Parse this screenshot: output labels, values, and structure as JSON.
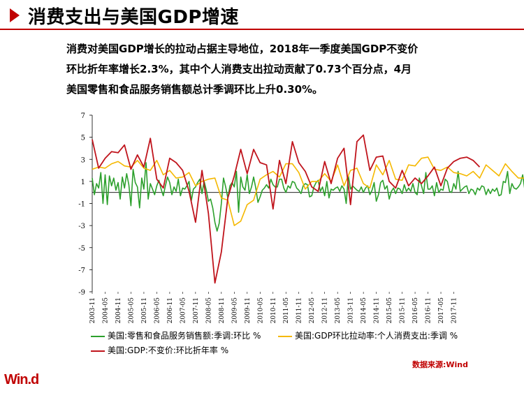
{
  "header": {
    "title": "消费支出与美国GDP增速"
  },
  "intro": {
    "lines": [
      "消费对美国GDP增长的拉动占据主导地位，2018年一季度美国GDP不变价",
      "环比折年率增长2.3%，其中个人消费支出拉动贡献了0.73个百分点，4月",
      "美国零售和食品服务销售额总计季调环比上升0.30%。"
    ]
  },
  "footer": {
    "source": "数据来源:Wind",
    "logo": "Win.d"
  },
  "colors": {
    "accent": "#c00000",
    "retail": "#2ca02c",
    "pce": "#f5b800",
    "gdp": "#c0141c"
  },
  "chart_data": {
    "type": "line",
    "title": "",
    "xlabel": "",
    "ylabel": "",
    "ylim": [
      -9,
      7
    ],
    "yticks": [
      7,
      5,
      3,
      1,
      -1,
      -3,
      -5,
      -7,
      -9
    ],
    "xtick_labels": [
      "2003-11",
      "2004-05",
      "2004-11",
      "2005-05",
      "2005-11",
      "2006-05",
      "2006-11",
      "2007-05",
      "2007-11",
      "2008-05",
      "2008-11",
      "2009-05",
      "2009-11",
      "2010-05",
      "2010-11",
      "2011-05",
      "2011-11",
      "2012-05",
      "2012-11",
      "2013-05",
      "2013-11",
      "2014-05",
      "2014-11",
      "2015-05",
      "2015-11",
      "2016-05",
      "2016-11",
      "2017-05",
      "2017-11"
    ],
    "legend_position": "bottom",
    "grid": false,
    "series": [
      {
        "name": "美国:零售和食品服务销售额:季调:环比 %",
        "frequency": "monthly",
        "start": "2003-11",
        "values": [
          1.3,
          -0.2,
          0.8,
          0.4,
          1.8,
          -1.0,
          1.6,
          -1.1,
          1.5,
          0.6,
          1.3,
          0.2,
          0.9,
          -0.6,
          1.4,
          0.4,
          1.7,
          0.7,
          -1.2,
          2.1,
          0.9,
          0.5,
          -1.4,
          1.3,
          0.3,
          2.7,
          -0.6,
          0.8,
          0.3,
          -0.2,
          0.6,
          1.1,
          0.3,
          -0.3,
          0.6,
          1.4,
          0.9,
          -0.2,
          0.5,
          0.1,
          1.2,
          -0.3,
          0.4,
          0.3,
          0.6,
          1.0,
          -0.8,
          0.3,
          0.5,
          0.9,
          1.2,
          -0.1,
          1.0,
          0.2,
          -0.8,
          -0.6,
          -1.4,
          -2.7,
          -3.5,
          -2.8,
          -1.0,
          1.3,
          0.5,
          -0.5,
          0.6,
          0.9,
          0.5,
          1.9,
          -1.8,
          1.4,
          0.5,
          0.2,
          1.6,
          -0.1,
          0.5,
          1.4,
          0.4,
          -0.9,
          -0.4,
          0.2,
          0.4,
          0.7,
          0.4,
          1.2,
          0.7,
          0.5,
          0.5,
          1.2,
          1.2,
          0.4,
          0.0,
          0.6,
          0.4,
          1.0,
          0.9,
          0.4,
          0.2,
          -0.1,
          0.6,
          0.8,
          0.7,
          -0.4,
          -0.3,
          0.5,
          0.9,
          1.1,
          0.1,
          0.5,
          -0.3,
          1.0,
          -0.5,
          0.3,
          0.2,
          0.4,
          0.5,
          0.1,
          0.6,
          0.3,
          -1.0,
          1.5,
          0.3,
          0.6,
          0.4,
          0.2,
          0.1,
          0.5,
          0.0,
          0.4,
          0.6,
          -0.2,
          0.2,
          0.9,
          -0.8,
          -0.2,
          0.9,
          1.1,
          0.3,
          0.6,
          -0.6,
          0.1,
          0.4,
          -0.1,
          0.4,
          0.3,
          -0.1,
          0.7,
          0.1,
          0.4,
          0.1,
          0.8,
          0.0,
          -0.2,
          1.3,
          0.6,
          -0.1,
          1.8,
          0.3,
          0.3,
          0.6,
          -0.3,
          0.9,
          0.0,
          0.3,
          0.2,
          1.2,
          1.0,
          0.1,
          0.0,
          0.8,
          0.3,
          1.9,
          0.1,
          0.3,
          0.5,
          0.6,
          -0.1,
          0.3,
          0.2,
          -0.2,
          0.4,
          0.2,
          0.6,
          0.5,
          -0.2,
          0.3,
          -0.1,
          0.3,
          0.1,
          0.4,
          -0.3,
          -0.2,
          1.0,
          0.9,
          1.9,
          -0.1,
          0.8,
          0.4,
          0.3,
          0.5,
          0.8,
          1.6,
          0.2,
          0.3,
          0.7,
          0.5,
          2.2,
          0.5,
          0.3,
          0.9,
          0.2,
          0.2,
          1.6,
          -0.1,
          1.3,
          0.8,
          -0.2,
          0.1,
          0.5,
          0.3,
          0.3
        ],
        "color": "#2ca02c"
      },
      {
        "name": "美国:GDP环比拉动率:个人消费支出:季调 %",
        "frequency": "quarterly",
        "start": "2003-11",
        "values": [
          2.1,
          2.3,
          2.2,
          2.6,
          2.8,
          2.4,
          2.3,
          2.9,
          2.2,
          2.0,
          2.9,
          1.6,
          2.0,
          1.3,
          1.4,
          1.8,
          0.6,
          1.0,
          1.2,
          1.3,
          -0.5,
          -0.7,
          -3.0,
          -2.6,
          -1.1,
          -0.7,
          1.2,
          1.6,
          1.9,
          1.4,
          2.6,
          2.6,
          1.8,
          0.3,
          1.0,
          1.0,
          1.7,
          1.0,
          2.5,
          0.6,
          2.0,
          2.2,
          0.8,
          0.4,
          2.5,
          1.6,
          2.9,
          1.2,
          1.1,
          2.5,
          2.4,
          3.1,
          3.2,
          2.1,
          2.0,
          2.3,
          1.8,
          1.7,
          1.5,
          1.9,
          1.3,
          2.5,
          2.0,
          1.5,
          2.6,
          1.9,
          1.3,
          1.3,
          1.9,
          2.1,
          2.9,
          0.8,
          0.7
        ],
        "color": "#f5b800"
      },
      {
        "name": "美国:GDP:不变价:环比折年率 %",
        "frequency": "quarterly",
        "start": "2003-11",
        "values": [
          4.8,
          2.2,
          3.1,
          3.7,
          3.6,
          4.3,
          2.1,
          3.4,
          2.3,
          4.9,
          1.2,
          0.4,
          3.1,
          2.7,
          2.0,
          0.1,
          -2.7,
          2.0,
          -1.9,
          -8.2,
          -5.4,
          -0.5,
          1.5,
          3.9,
          1.7,
          3.9,
          2.7,
          2.5,
          -1.5,
          2.9,
          0.8,
          4.6,
          2.7,
          1.9,
          0.5,
          0.1,
          2.8,
          0.8,
          3.1,
          4.0,
          -1.1,
          4.6,
          5.2,
          2.0,
          3.2,
          3.3,
          1.0,
          0.4,
          2.0,
          0.6,
          1.3,
          0.8,
          1.5,
          2.3,
          0.6,
          2.2,
          2.8,
          3.1,
          3.2,
          2.9,
          2.3
        ],
        "color": "#c0141c"
      }
    ]
  },
  "legend": {
    "retail": "美国:零售和食品服务销售额:季调:环比 %",
    "pce": "美国:GDP环比拉动率:个人消费支出:季调 %",
    "gdp": "美国:GDP:不变价:环比折年率 %"
  }
}
